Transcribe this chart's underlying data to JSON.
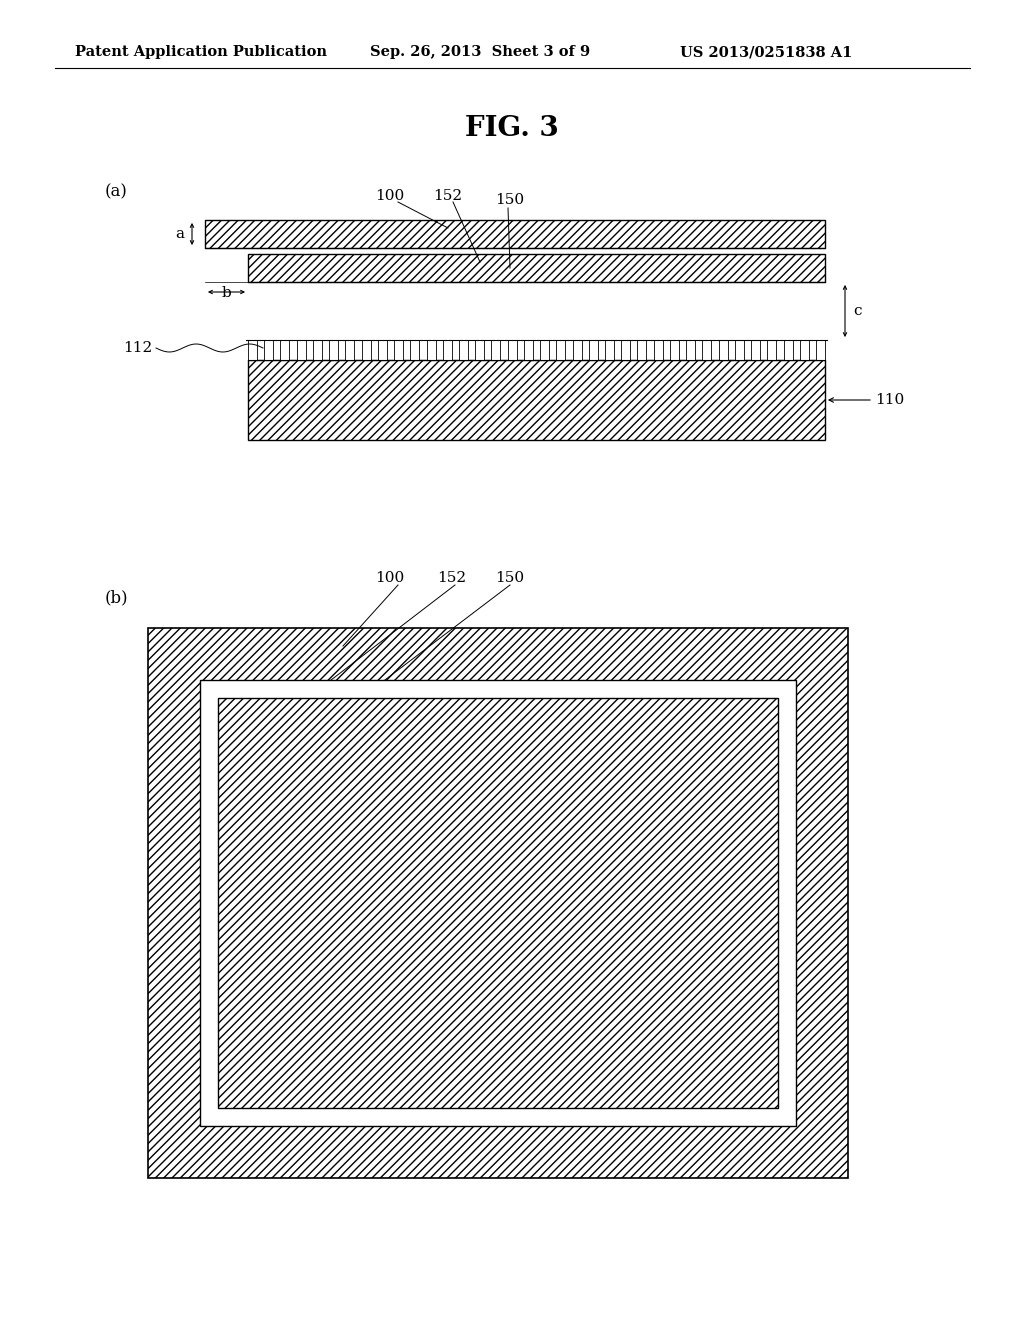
{
  "background_color": "#ffffff",
  "header_left": "Patent Application Publication",
  "header_mid": "Sep. 26, 2013  Sheet 3 of 9",
  "header_right": "US 2013/0251838 A1",
  "fig_title": "FIG. 3",
  "label_a": "(a)",
  "label_b": "(b)",
  "label_100": "100",
  "label_152": "152",
  "label_150": "150",
  "label_110": "110",
  "label_112": "112",
  "label_a_dim": "a",
  "label_b_dim": "b",
  "label_c_dim": "c"
}
